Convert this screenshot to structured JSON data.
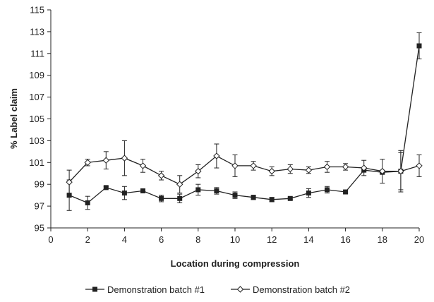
{
  "chart_data": {
    "type": "line",
    "title": "",
    "xlabel": "Location during compression",
    "ylabel": "% Label claim",
    "xlim": [
      0,
      20
    ],
    "ylim": [
      95,
      115
    ],
    "xticks": [
      0,
      2,
      4,
      6,
      8,
      10,
      12,
      14,
      16,
      18,
      20
    ],
    "yticks": [
      95,
      97,
      99,
      101,
      103,
      105,
      107,
      109,
      111,
      113,
      115
    ],
    "grid": false,
    "legend_position": "bottom",
    "x": [
      1,
      2,
      3,
      4,
      5,
      6,
      7,
      8,
      9,
      10,
      11,
      12,
      13,
      14,
      15,
      16,
      17,
      18,
      19,
      20
    ],
    "series": [
      {
        "name": "Demonstration batch #1",
        "marker": "filled-square",
        "color": "#222222",
        "values": [
          98.0,
          97.3,
          98.7,
          98.2,
          98.4,
          97.7,
          97.7,
          98.5,
          98.4,
          98.0,
          97.8,
          97.6,
          97.7,
          98.2,
          98.5,
          98.3,
          100.3,
          100.1,
          100.2,
          111.7
        ],
        "errors": [
          1.4,
          0.6,
          0.1,
          0.6,
          0.1,
          0.3,
          0.4,
          0.5,
          0.3,
          0.3,
          0.2,
          0.2,
          0.1,
          0.4,
          0.3,
          0.1,
          0.1,
          0.1,
          1.7,
          1.2
        ]
      },
      {
        "name": "Demonstration batch #2",
        "marker": "open-diamond",
        "color": "#222222",
        "values": [
          99.2,
          101.0,
          101.2,
          101.4,
          100.7,
          99.8,
          99.0,
          100.2,
          101.6,
          100.7,
          100.7,
          100.2,
          100.4,
          100.3,
          100.6,
          100.6,
          100.5,
          100.2,
          100.2,
          100.7
        ],
        "errors": [
          1.1,
          0.3,
          0.8,
          1.6,
          0.6,
          0.4,
          0.8,
          0.6,
          1.1,
          1.0,
          0.4,
          0.4,
          0.4,
          0.3,
          0.5,
          0.3,
          0.7,
          1.1,
          1.9,
          1.0
        ]
      }
    ]
  }
}
